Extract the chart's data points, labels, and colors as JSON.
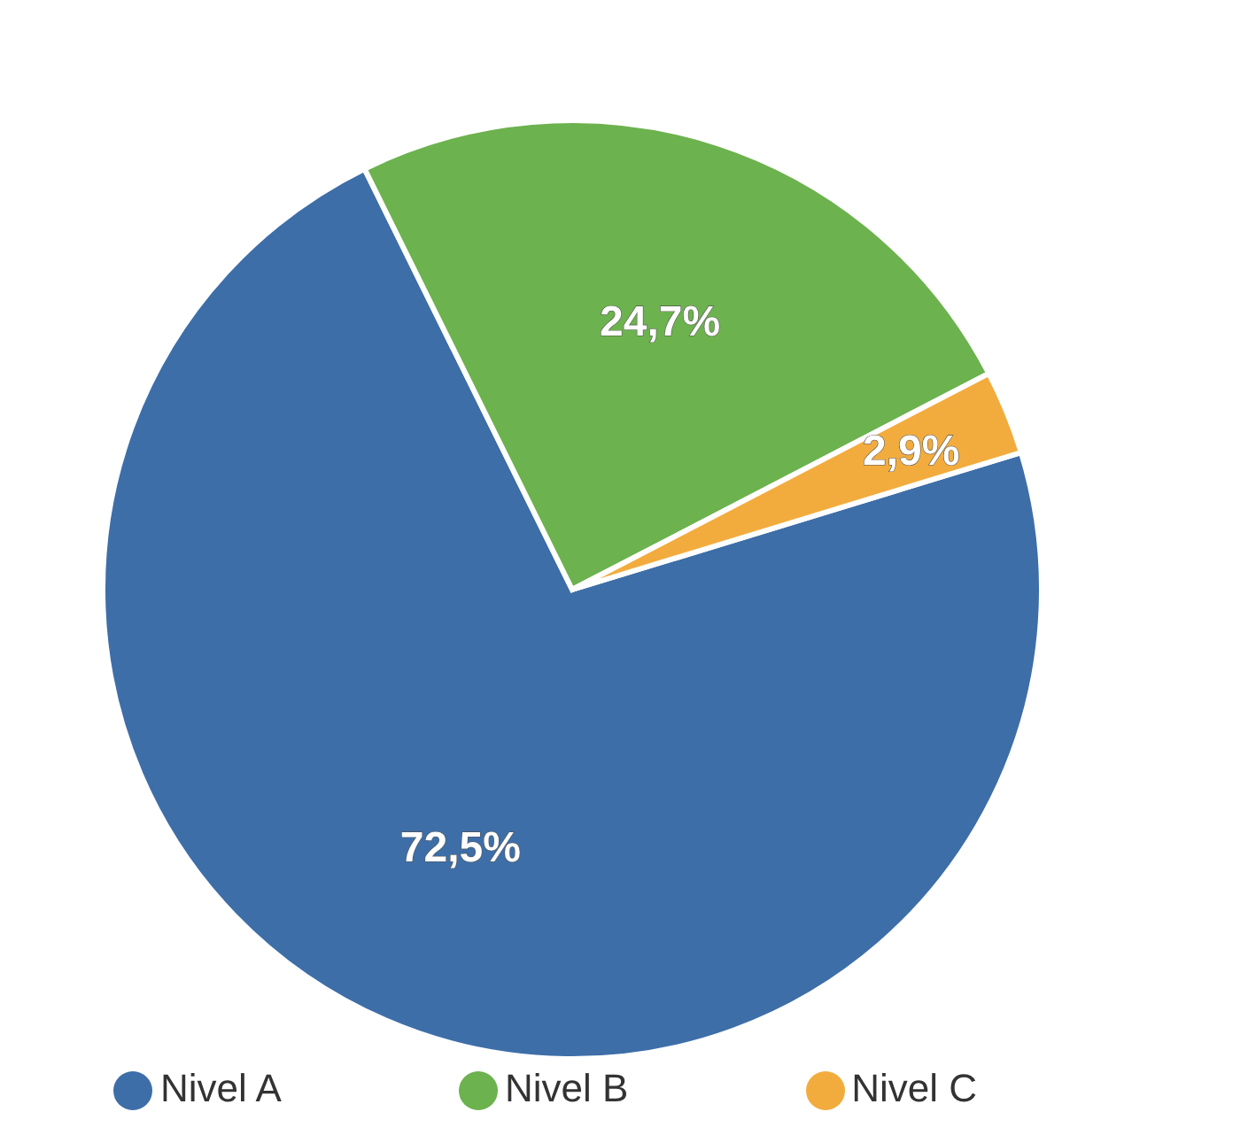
{
  "chart_data": {
    "type": "pie",
    "categories": [
      "Nivel A",
      "Nivel B",
      "Nivel C"
    ],
    "values": [
      72.5,
      24.7,
      2.9
    ],
    "value_labels": [
      "72,5%",
      "24,7%",
      "2,9%"
    ],
    "colors": [
      "#3d6ea8",
      "#6cb24e",
      "#f2ac3e"
    ],
    "legend": "bottom"
  }
}
